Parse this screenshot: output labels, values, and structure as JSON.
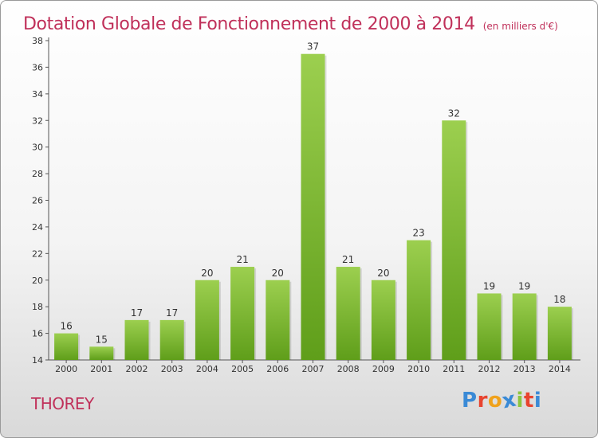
{
  "title": "Dotation Globale de Fonctionnement de 2000 à 2014",
  "unit": "(en milliers d'€)",
  "commune": "THOREY",
  "logo": {
    "text": "Proxiti",
    "letters": [
      "P",
      "r",
      "o",
      "x",
      "i",
      "t",
      "i"
    ],
    "colors": [
      "#3a8ad6",
      "#e8442f",
      "#f0a21c",
      "#3a8ad6",
      "#8cc63f",
      "#e8442f",
      "#3a8ad6"
    ]
  },
  "colors": {
    "title": "#c0305a",
    "bar_light": "#9ccf4f",
    "bar_dark": "#5f9e1a",
    "axis": "#555555"
  },
  "chart_data": {
    "type": "bar",
    "categories": [
      "2000",
      "2001",
      "2002",
      "2003",
      "2004",
      "2005",
      "2006",
      "2007",
      "2008",
      "2009",
      "2010",
      "2011",
      "2012",
      "2013",
      "2014"
    ],
    "values": [
      16,
      15,
      17,
      17,
      20,
      21,
      20,
      37,
      21,
      20,
      23,
      32,
      19,
      19,
      18
    ],
    "ylim": [
      14,
      38
    ],
    "yticks": [
      14,
      16,
      18,
      20,
      22,
      24,
      26,
      28,
      30,
      32,
      34,
      36,
      38
    ],
    "grid": false,
    "data_labels": true
  }
}
